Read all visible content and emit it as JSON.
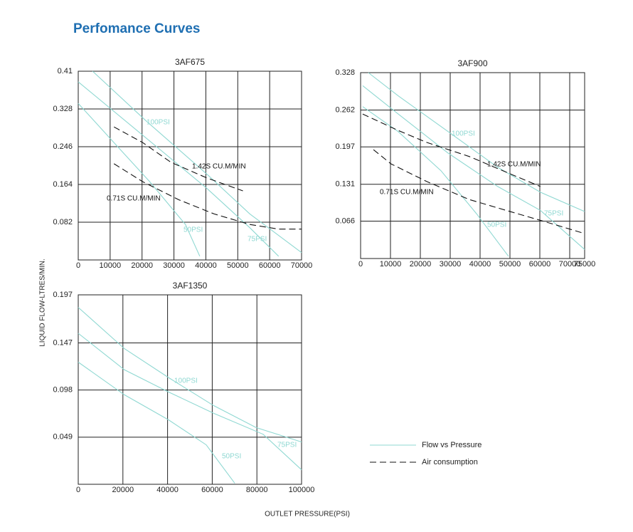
{
  "title": "Perfomance Curves",
  "y_label": "LIQUID FLOW-LTRES/MIN.",
  "x_label": "OUTLET PRESSURE(PSI)",
  "legend": [
    {
      "name": "Flow vs Pressure",
      "color": "#8fd8d2",
      "style": "solid"
    },
    {
      "name": "Air consumption",
      "color": "#111111",
      "style": "dashed"
    }
  ],
  "chart_data": [
    {
      "type": "line",
      "title": "3AF675",
      "xlim": [
        0,
        70000
      ],
      "ylim": [
        0,
        0.41
      ],
      "xticks": [
        0,
        10000,
        20000,
        30000,
        40000,
        50000,
        60000,
        70000
      ],
      "yticks": [
        0.082,
        0.164,
        0.246,
        0.328,
        0.41
      ],
      "grid": true,
      "series": [
        {
          "name": "100PSI",
          "color": "#8fd8d2",
          "style": "solid",
          "x": [
            4500,
            21300,
            40400,
            53800,
            70000
          ],
          "values": [
            0.41,
            0.302,
            0.186,
            0.1,
            0.016
          ]
        },
        {
          "name": "75PSI",
          "color": "#8fd8d2",
          "style": "solid",
          "x": [
            0,
            20200,
            40400,
            53800,
            62800
          ],
          "values": [
            0.387,
            0.271,
            0.155,
            0.07,
            0.008
          ]
        },
        {
          "name": "50PSI",
          "color": "#8fd8d2",
          "style": "solid",
          "x": [
            0,
            11200,
            22400,
            33600,
            38100
          ],
          "values": [
            0.34,
            0.255,
            0.17,
            0.077,
            0.008
          ]
        },
        {
          "name": "1.42S CU.M/MIN",
          "color": "#111111",
          "style": "dashed",
          "x": [
            11200,
            20200,
            29100,
            40400,
            51600
          ],
          "values": [
            0.289,
            0.255,
            0.212,
            0.178,
            0.15
          ]
        },
        {
          "name": "0.71S CU.M/MIN",
          "color": "#111111",
          "style": "dashed",
          "x": [
            11200,
            20200,
            31400,
            42600,
            53800,
            62800,
            70000
          ],
          "values": [
            0.209,
            0.17,
            0.131,
            0.1,
            0.077,
            0.067,
            0.067
          ]
        }
      ]
    },
    {
      "type": "line",
      "title": "3AF900",
      "xlim": [
        0,
        75000
      ],
      "ylim": [
        0,
        0.328
      ],
      "xticks": [
        0,
        10000,
        20000,
        30000,
        40000,
        50000,
        60000,
        70000,
        75000
      ],
      "yticks": [
        0.066,
        0.131,
        0.197,
        0.262,
        0.328
      ],
      "grid": true,
      "series": [
        {
          "name": "100PSI",
          "color": "#8fd8d2",
          "style": "solid",
          "x": [
            2600,
            12600,
            29300,
            45900,
            60200,
            75000
          ],
          "values": [
            0.328,
            0.287,
            0.224,
            0.161,
            0.117,
            0.083
          ]
        },
        {
          "name": "75PSI",
          "color": "#8fd8d2",
          "style": "solid",
          "x": [
            700,
            12600,
            29300,
            45900,
            60200,
            75000
          ],
          "values": [
            0.305,
            0.255,
            0.186,
            0.127,
            0.085,
            0.016
          ]
        },
        {
          "name": "50PSI",
          "color": "#8fd8d2",
          "style": "solid",
          "x": [
            700,
            12600,
            26900,
            38800,
            49500
          ],
          "values": [
            0.268,
            0.224,
            0.155,
            0.079,
            0.004
          ]
        },
        {
          "name": "1.42S CU.M/MIN",
          "color": "#111111",
          "style": "dashed",
          "x": [
            700,
            12600,
            22100,
            36400,
            50700,
            60200
          ],
          "values": [
            0.255,
            0.226,
            0.205,
            0.18,
            0.148,
            0.127
          ]
        },
        {
          "name": "0.71S CU.M/MIN",
          "color": "#111111",
          "style": "dashed",
          "x": [
            4300,
            10200,
            22100,
            36400,
            50700,
            65000,
            75000
          ],
          "values": [
            0.192,
            0.167,
            0.136,
            0.104,
            0.082,
            0.06,
            0.044
          ]
        }
      ]
    },
    {
      "type": "line",
      "title": "3AF1350",
      "xlim": [
        0,
        100000
      ],
      "ylim": [
        0,
        0.197
      ],
      "xticks": [
        0,
        20000,
        40000,
        60000,
        80000,
        100000
      ],
      "yticks": [
        0.049,
        0.098,
        0.147,
        0.197
      ],
      "grid": true,
      "series": [
        {
          "name": "100PSI",
          "color": "#8fd8d2",
          "style": "solid",
          "x": [
            0,
            20700,
            40400,
            60500,
            79600,
            100000
          ],
          "values": [
            0.184,
            0.141,
            0.111,
            0.082,
            0.059,
            0.044
          ]
        },
        {
          "name": "75PSI",
          "color": "#8fd8d2",
          "style": "solid",
          "x": [
            0,
            20700,
            40400,
            60500,
            82800,
            100000
          ],
          "values": [
            0.157,
            0.119,
            0.096,
            0.074,
            0.052,
            0.015
          ]
        },
        {
          "name": "50PSI",
          "color": "#8fd8d2",
          "style": "solid",
          "x": [
            0,
            20700,
            40400,
            57300,
            70100
          ],
          "values": [
            0.127,
            0.093,
            0.067,
            0.041,
            0.001
          ]
        }
      ]
    }
  ]
}
